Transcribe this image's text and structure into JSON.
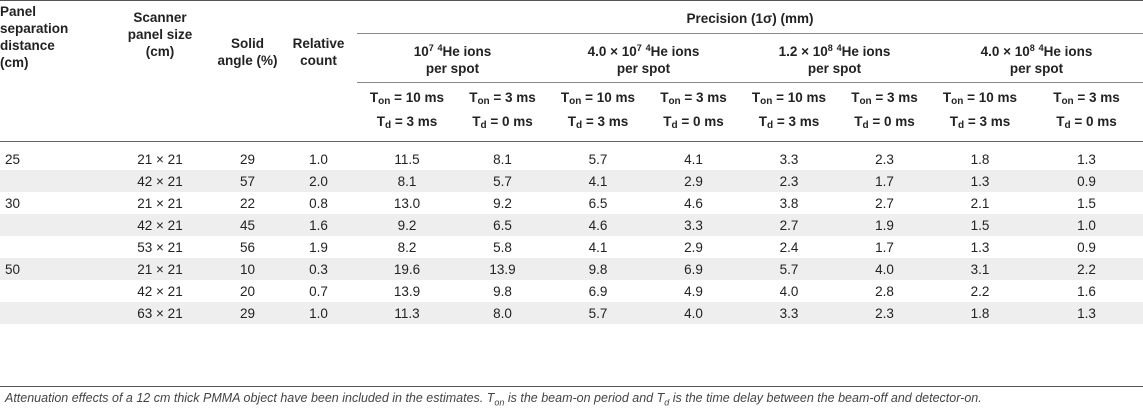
{
  "header": {
    "col_panel_sep": [
      "Panel",
      "separation",
      "distance",
      "(cm)"
    ],
    "col_scanner": [
      "Scanner",
      "panel size",
      "(cm)"
    ],
    "col_solid": [
      "Solid",
      "angle (%)"
    ],
    "col_relative": [
      "Relative",
      "count"
    ],
    "precision_title": "Precision (1σ) (mm)",
    "ion_groups": [
      {
        "line1_pre": "10",
        "line1_sup": "7",
        "line1_mid": " ",
        "line1_sup2": "4",
        "line1_post": "He ions",
        "line2": "per spot"
      },
      {
        "line1_pre": "4.0 × 10",
        "line1_sup": "7",
        "line1_mid": " ",
        "line1_sup2": "4",
        "line1_post": "He ions",
        "line2": "per spot"
      },
      {
        "line1_pre": "1.2 × 10",
        "line1_sup": "8",
        "line1_mid": " ",
        "line1_sup2": "4",
        "line1_post": "He ions",
        "line2": "per spot"
      },
      {
        "line1_pre": "4.0 × 10",
        "line1_sup": "8",
        "line1_mid": " ",
        "line1_sup2": "4",
        "line1_post": "He ions",
        "line2": "per spot"
      }
    ],
    "timing": {
      "a_top_T": "T",
      "a_top_sub": "on",
      "a_top_val": " = 10 ms",
      "a_bot_T": "T",
      "a_bot_sub": "d",
      "a_bot_val": " = 3 ms",
      "b_top_T": "T",
      "b_top_sub": "on",
      "b_top_val": " = 3 ms",
      "b_bot_T": "T",
      "b_bot_sub": "d",
      "b_bot_val": " = 0 ms"
    }
  },
  "rows": [
    [
      "25",
      "21 × 21",
      "29",
      "1.0",
      "11.5",
      "8.1",
      "5.7",
      "4.1",
      "3.3",
      "2.3",
      "1.8",
      "1.3"
    ],
    [
      "",
      "42 × 21",
      "57",
      "2.0",
      "8.1",
      "5.7",
      "4.1",
      "2.9",
      "2.3",
      "1.7",
      "1.3",
      "0.9"
    ],
    [
      "30",
      "21 × 21",
      "22",
      "0.8",
      "13.0",
      "9.2",
      "6.5",
      "4.6",
      "3.8",
      "2.7",
      "2.1",
      "1.5"
    ],
    [
      "",
      "42 × 21",
      "45",
      "1.6",
      "9.2",
      "6.5",
      "4.6",
      "3.3",
      "2.7",
      "1.9",
      "1.5",
      "1.0"
    ],
    [
      "",
      "53 × 21",
      "56",
      "1.9",
      "8.2",
      "5.8",
      "4.1",
      "2.9",
      "2.4",
      "1.7",
      "1.3",
      "0.9"
    ],
    [
      "50",
      "21 × 21",
      "10",
      "0.3",
      "19.6",
      "13.9",
      "9.8",
      "6.9",
      "5.7",
      "4.0",
      "3.1",
      "2.2"
    ],
    [
      "",
      "42 × 21",
      "20",
      "0.7",
      "13.9",
      "9.8",
      "6.9",
      "4.9",
      "4.0",
      "2.8",
      "2.2",
      "1.6"
    ],
    [
      "",
      "63 × 21",
      "29",
      "1.0",
      "11.3",
      "8.0",
      "5.7",
      "4.0",
      "3.3",
      "2.3",
      "1.8",
      "1.3"
    ]
  ],
  "footnote": {
    "p1": "Attenuation effects of a 12 cm thick PMMA object have been included in the estimates. T",
    "s1": "on",
    "p2": " is the beam-on period and T",
    "s2": "d",
    "p3": " is the time delay between the beam-off and detector-on."
  }
}
